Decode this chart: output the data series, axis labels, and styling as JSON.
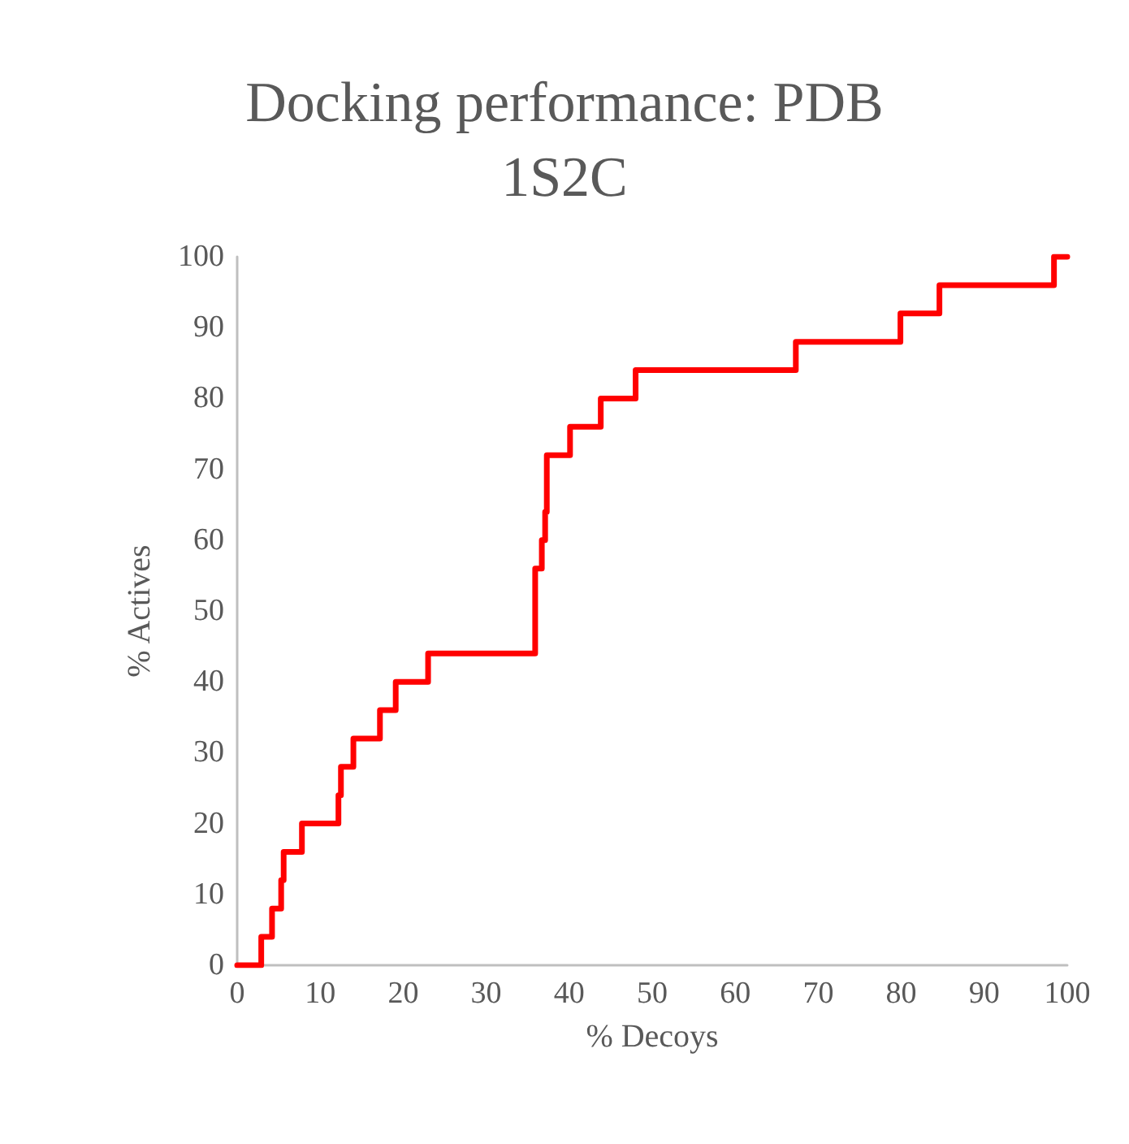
{
  "chart_data": {
    "type": "step",
    "title": "Docking performance: PDB\n1S2C",
    "xlabel": "% Decoys",
    "ylabel": "% Actives",
    "x": [
      0,
      2.9,
      4.2,
      5.3,
      5.6,
      7.8,
      12.2,
      12.5,
      14,
      17.2,
      19.1,
      23,
      35.9,
      36.7,
      37.1,
      37.3,
      40.1,
      43.8,
      48,
      67.3,
      79.9,
      84.6,
      98.4,
      100
    ],
    "series": [
      {
        "color": "#ff0000",
        "values": [
          0,
          4,
          8,
          12,
          16,
          20,
          24,
          28,
          32,
          36,
          40,
          44,
          56,
          60,
          64,
          72,
          76,
          80,
          84,
          88,
          92,
          96,
          100,
          100
        ]
      }
    ],
    "xlim": [
      0,
      100
    ],
    "xticks": [
      0,
      10,
      20,
      30,
      40,
      50,
      60,
      70,
      80,
      90,
      100
    ],
    "ylim": [
      0,
      100
    ],
    "yticks": [
      0,
      10,
      20,
      30,
      40,
      50,
      60,
      70,
      80,
      90,
      100
    ],
    "grid": false,
    "marker": "none",
    "line_style": "solid"
  }
}
